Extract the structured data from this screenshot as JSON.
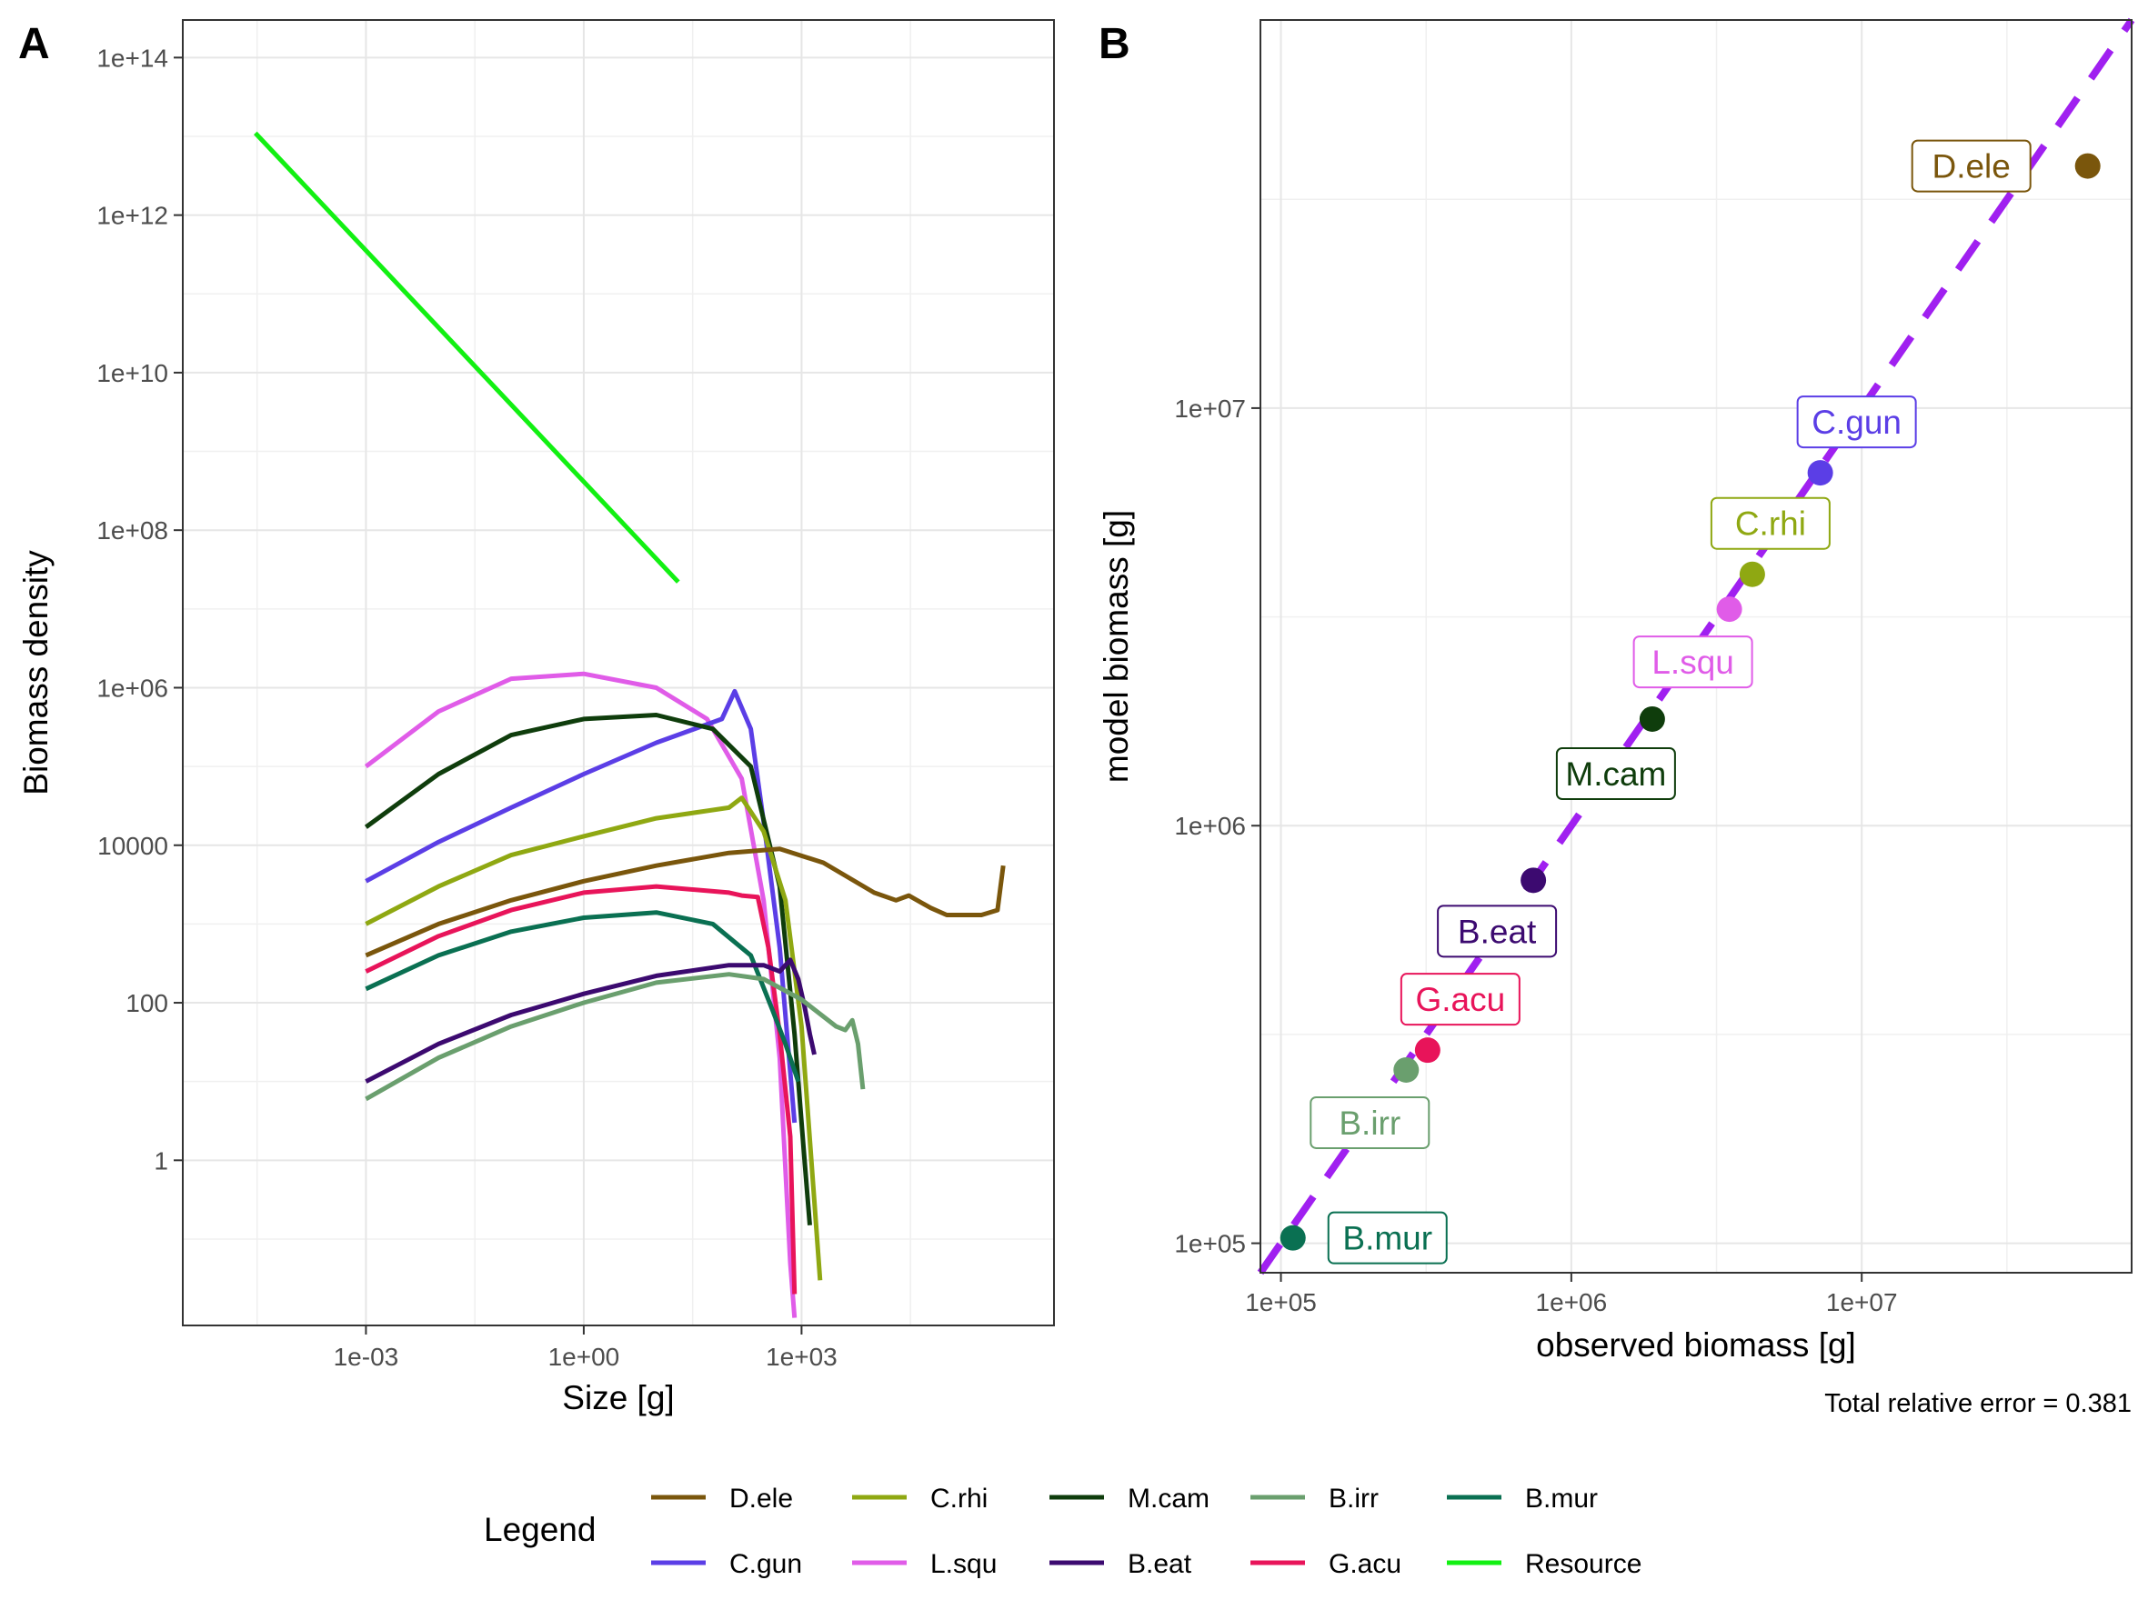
{
  "panels": {
    "A": {
      "tag": "A"
    },
    "B": {
      "tag": "B"
    }
  },
  "colors": {
    "D.ele": "#7a560c",
    "C.gun": "#5b3ee6",
    "C.rhi": "#8fa812",
    "L.squ": "#e05ce8",
    "M.cam": "#0f3d0c",
    "B.eat": "#3c0a70",
    "B.irr": "#6a9f6e",
    "G.acu": "#e8145a",
    "B.mur": "#0a7052",
    "Resource": "#12f012",
    "fit_line": "#a020f0"
  },
  "chart_data": [
    {
      "panel": "A",
      "type": "line",
      "xlabel": "Size [g]",
      "ylabel": "Biomass density",
      "xscale": "log10",
      "yscale": "log10",
      "xlim": [
        3e-06,
        3000000.0
      ],
      "ylim": [
        0.008,
        300000000000000.0
      ],
      "xticks": [
        {
          "value": 0.001,
          "label": "1e-03"
        },
        {
          "value": 1,
          "label": "1e+00"
        },
        {
          "value": 1000,
          "label": "1e+03"
        }
      ],
      "yticks": [
        {
          "value": 1,
          "label": "1"
        },
        {
          "value": 100,
          "label": "100"
        },
        {
          "value": 10000,
          "label": "10000"
        },
        {
          "value": 1000000,
          "label": "1e+06"
        },
        {
          "value": 100000000,
          "label": "1e+08"
        },
        {
          "value": 10000000000,
          "label": "1e+10"
        },
        {
          "value": 1000000000000,
          "label": "1e+12"
        },
        {
          "value": 100000000000000,
          "label": "1e+14"
        }
      ],
      "grid": true,
      "series": [
        {
          "name": "Resource",
          "x": [
            3e-05,
            20
          ],
          "y": [
            11000000000000.0,
            22000000.0
          ]
        },
        {
          "name": "L.squ",
          "x": [
            0.001,
            0.01,
            0.1,
            1,
            10,
            50,
            150,
            300,
            500,
            700,
            800
          ],
          "y": [
            100000.0,
            500000.0,
            1300000.0,
            1500000.0,
            1000000.0,
            400000.0,
            70000.0,
            2000,
            20,
            0.05,
            0.01
          ]
        },
        {
          "name": "C.gun",
          "x": [
            0.001,
            0.01,
            0.1,
            1,
            10,
            80,
            120,
            200,
            300,
            500,
            800
          ],
          "y": [
            3500,
            11000.0,
            30000.0,
            80000.0,
            200000.0,
            400000.0,
            900000.0,
            300000.0,
            20000.0,
            500,
            3
          ]
        },
        {
          "name": "M.cam",
          "x": [
            0.001,
            0.01,
            0.1,
            1,
            10,
            60,
            200,
            500,
            800,
            1100,
            1300
          ],
          "y": [
            17000.0,
            80000.0,
            250000.0,
            400000.0,
            450000.0,
            300000.0,
            100000.0,
            3000,
            40,
            1,
            0.15
          ]
        },
        {
          "name": "C.rhi",
          "x": [
            0.001,
            0.01,
            0.1,
            1,
            10,
            100,
            150,
            300,
            600,
            1000,
            1500,
            1800
          ],
          "y": [
            1000,
            3000,
            7500,
            13000.0,
            22000.0,
            30000.0,
            40000.0,
            15000.0,
            2000,
            50,
            0.3,
            0.03
          ]
        },
        {
          "name": "D.ele",
          "x": [
            0.001,
            0.01,
            0.1,
            1,
            10,
            100,
            500,
            2000,
            10000,
            20000,
            30000,
            60000,
            100000,
            300000,
            500000,
            600000
          ],
          "y": [
            400,
            1000,
            2000,
            3500,
            5500,
            8000,
            9000,
            6000,
            2500,
            2000,
            2300,
            1600,
            1300,
            1300,
            1500,
            5500
          ]
        },
        {
          "name": "G.acu",
          "x": [
            0.001,
            0.01,
            0.1,
            1,
            10,
            100,
            150,
            250,
            350,
            500,
            700,
            800
          ],
          "y": [
            250,
            700,
            1500,
            2500,
            3000,
            2500,
            2300,
            2200,
            500,
            40,
            2,
            0.02
          ]
        },
        {
          "name": "B.mur",
          "x": [
            0.001,
            0.01,
            0.1,
            1,
            10,
            60,
            200,
            400,
            600,
            900
          ],
          "y": [
            150,
            400,
            800,
            1200,
            1400,
            1000,
            400,
            80,
            30,
            10
          ]
        },
        {
          "name": "B.eat",
          "x": [
            0.001,
            0.01,
            0.1,
            1,
            10,
            100,
            300,
            500,
            700,
            900,
            1100,
            1300,
            1500
          ],
          "y": [
            10,
            30,
            70,
            130,
            220,
            300,
            300,
            250,
            350,
            200,
            90,
            40,
            22
          ]
        },
        {
          "name": "B.irr",
          "x": [
            0.001,
            0.01,
            0.1,
            1,
            10,
            100,
            300,
            1000,
            3000,
            4000,
            5000,
            6000,
            7000
          ],
          "y": [
            6,
            20,
            50,
            100,
            180,
            230,
            200,
            110,
            50,
            45,
            60,
            30,
            8
          ]
        }
      ]
    },
    {
      "panel": "B",
      "type": "scatter",
      "xlabel": "observed biomass [g]",
      "ylabel": "model biomass [g]",
      "xscale": "log10",
      "yscale": "log10",
      "xlim": [
        85000,
        85000000
      ],
      "ylim": [
        85000,
        85000000
      ],
      "xticks": [
        {
          "value": 100000,
          "label": "1e+05"
        },
        {
          "value": 1000000,
          "label": "1e+06"
        },
        {
          "value": 10000000,
          "label": "1e+07"
        }
      ],
      "yticks": [
        {
          "value": 100000,
          "label": "1e+05"
        },
        {
          "value": 1000000,
          "label": "1e+06"
        },
        {
          "value": 10000000,
          "label": "1e+07"
        }
      ],
      "grid": true,
      "reference_line": "y = x (dashed)",
      "points": [
        {
          "name": "D.ele",
          "x": 60000000,
          "y": 38000000,
          "label_dx": -128,
          "label_dy": 0
        },
        {
          "name": "C.gun",
          "x": 7200000,
          "y": 7000000,
          "label_dx": 40,
          "label_dy": -56
        },
        {
          "name": "C.rhi",
          "x": 4200000,
          "y": 4000000,
          "label_dx": 20,
          "label_dy": -56
        },
        {
          "name": "L.squ",
          "x": 3500000,
          "y": 3300000,
          "label_dx": -40,
          "label_dy": 58
        },
        {
          "name": "M.cam",
          "x": 1900000,
          "y": 1800000,
          "label_dx": -40,
          "label_dy": 60
        },
        {
          "name": "B.eat",
          "x": 740000,
          "y": 740000,
          "label_dx": -40,
          "label_dy": 56
        },
        {
          "name": "G.acu",
          "x": 320000,
          "y": 290000,
          "label_dx": 36,
          "label_dy": -56
        },
        {
          "name": "B.irr",
          "x": 270000,
          "y": 260000,
          "label_dx": -40,
          "label_dy": 58
        },
        {
          "name": "B.mur",
          "x": 110000,
          "y": 103000,
          "label_dx": 104,
          "label_dy": 0
        }
      ],
      "annotation": "Total relative error = 0.381"
    }
  ],
  "legend": {
    "title": "Legend",
    "placement": "bottom",
    "items": [
      "D.ele",
      "C.rhi",
      "M.cam",
      "B.irr",
      "B.mur",
      "C.gun",
      "L.squ",
      "B.eat",
      "G.acu",
      "Resource"
    ]
  }
}
